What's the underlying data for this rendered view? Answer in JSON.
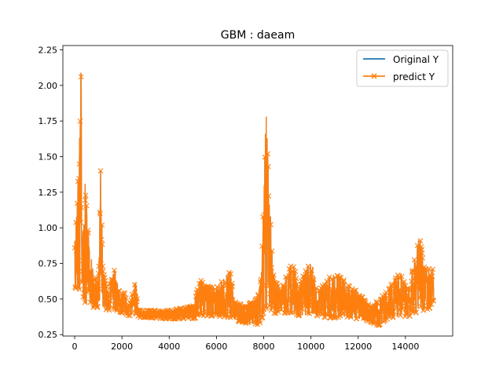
{
  "chart_data": {
    "type": "line",
    "title": "GBM : daeam",
    "xlabel": "",
    "ylabel": "",
    "xlim": [
      -500,
      16000
    ],
    "ylim": [
      0.24,
      2.28
    ],
    "x_ticks": [
      0,
      2000,
      4000,
      6000,
      8000,
      10000,
      12000,
      14000
    ],
    "y_ticks": [
      0.25,
      0.5,
      0.75,
      1.0,
      1.25,
      1.5,
      1.75,
      2.0,
      2.25
    ],
    "x_tick_labels": [
      "0",
      "2000",
      "4000",
      "6000",
      "8000",
      "10000",
      "12000",
      "14000"
    ],
    "y_tick_labels": [
      "0.25",
      "0.50",
      "0.75",
      "1.00",
      "1.25",
      "1.50",
      "1.75",
      "2.00",
      "2.25"
    ],
    "grid": false,
    "legend_position": "top-right",
    "series": [
      {
        "name": "Original Y",
        "color": "#1f77b4",
        "marker": "none"
      },
      {
        "name": "predict Y",
        "color": "#ff7f0e",
        "marker": "x"
      }
    ],
    "envelope": {
      "x": [
        0,
        100,
        200,
        250,
        300,
        350,
        400,
        450,
        600,
        800,
        1000,
        1100,
        1200,
        1400,
        1700,
        1900,
        2100,
        2300,
        2600,
        2700,
        3000,
        4000,
        5000,
        5300,
        5500,
        6000,
        6600,
        6800,
        7200,
        7700,
        7900,
        8100,
        8200,
        8400,
        8700,
        9200,
        9500,
        10000,
        10300,
        10900,
        11300,
        11600,
        12000,
        12500,
        12900,
        13200,
        13800,
        14100,
        14600,
        14800,
        15200
      ],
      "upper": [
        0.92,
        1.15,
        1.55,
        2.25,
        1.98,
        1.42,
        1.35,
        1.3,
        0.9,
        0.68,
        0.62,
        1.42,
        0.7,
        0.55,
        0.72,
        0.55,
        0.55,
        0.45,
        0.64,
        0.42,
        0.42,
        0.42,
        0.45,
        0.65,
        0.6,
        0.58,
        0.7,
        0.48,
        0.45,
        0.5,
        0.65,
        1.82,
        1.42,
        0.68,
        0.55,
        0.78,
        0.6,
        0.78,
        0.55,
        0.68,
        0.65,
        0.6,
        0.55,
        0.45,
        0.5,
        0.55,
        0.7,
        0.55,
        0.95,
        0.72,
        0.72
      ],
      "lower": [
        0.6,
        0.5,
        0.55,
        0.6,
        0.55,
        0.5,
        0.48,
        0.47,
        0.45,
        0.44,
        0.44,
        0.45,
        0.43,
        0.42,
        0.43,
        0.41,
        0.4,
        0.38,
        0.4,
        0.37,
        0.37,
        0.36,
        0.36,
        0.38,
        0.38,
        0.38,
        0.37,
        0.35,
        0.33,
        0.31,
        0.34,
        0.42,
        0.45,
        0.4,
        0.4,
        0.4,
        0.38,
        0.4,
        0.38,
        0.36,
        0.38,
        0.37,
        0.36,
        0.34,
        0.31,
        0.36,
        0.38,
        0.37,
        0.42,
        0.42,
        0.45
      ]
    }
  }
}
